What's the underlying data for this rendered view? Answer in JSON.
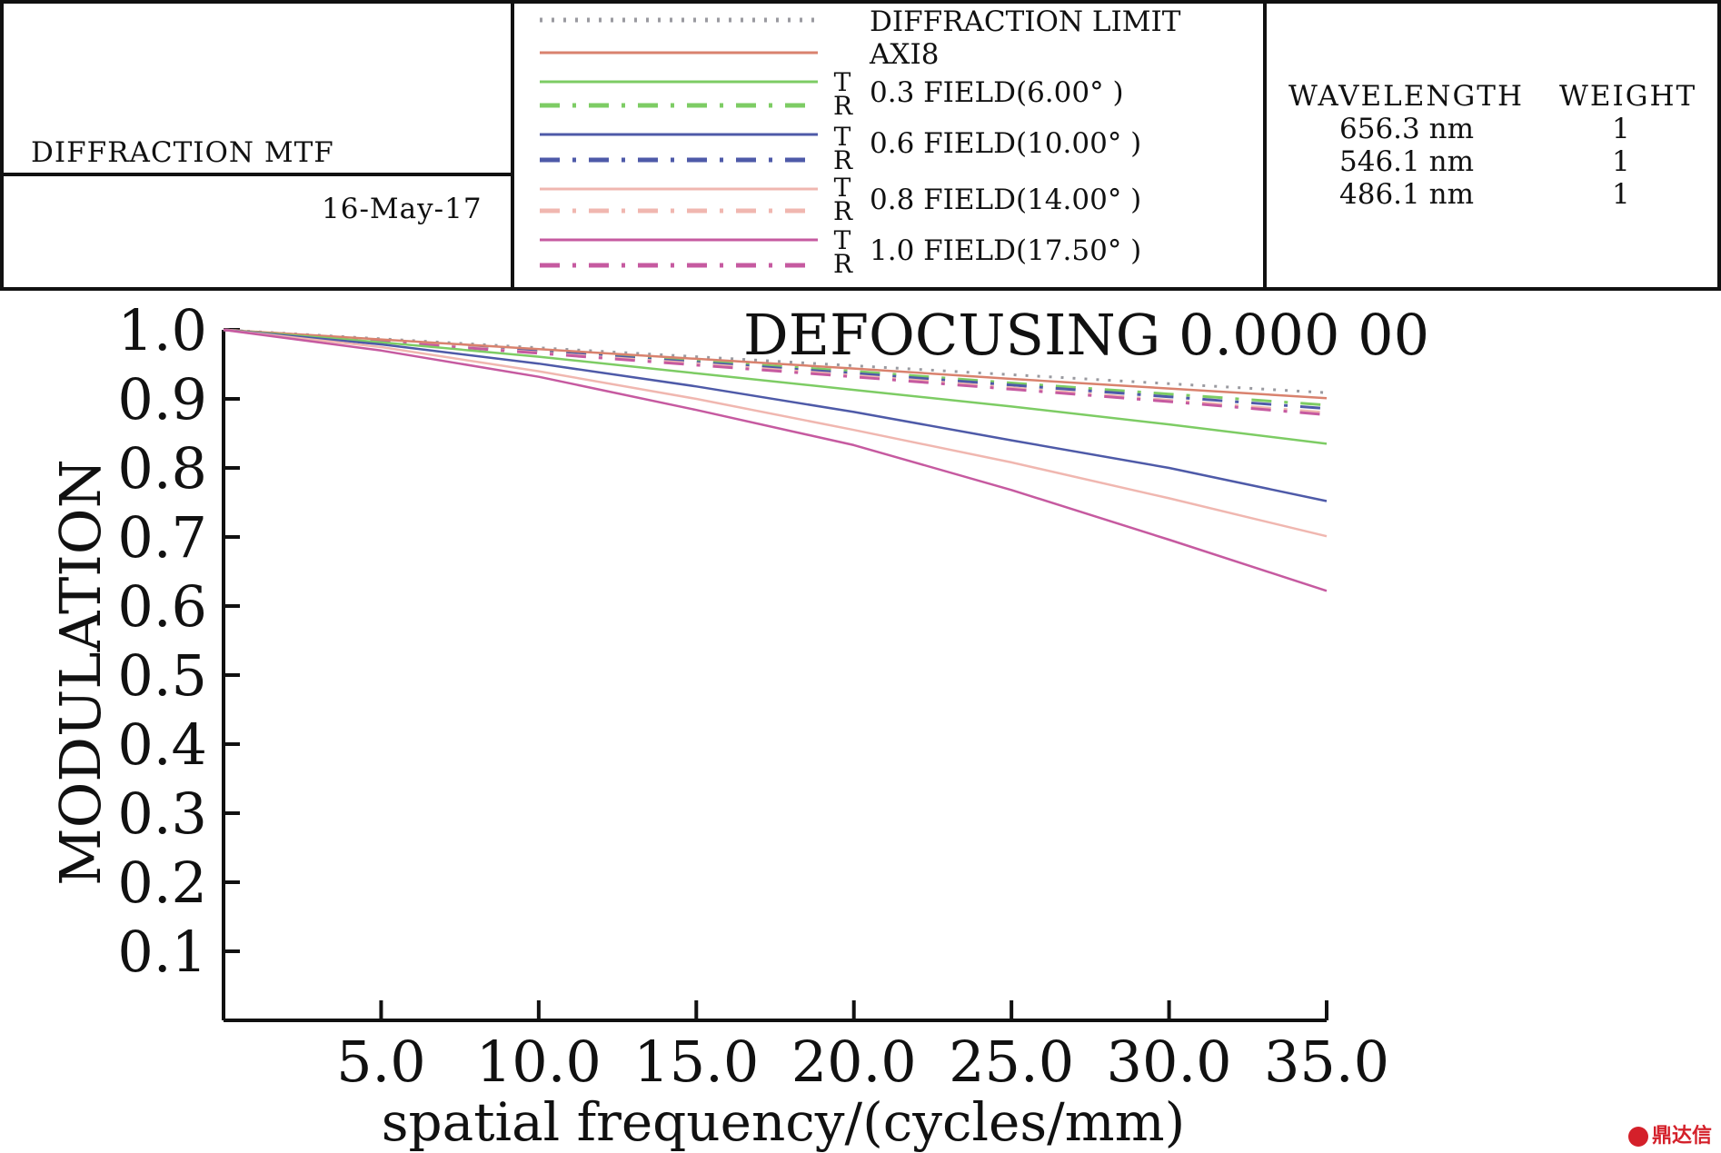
{
  "header": {
    "plot_type": "DIFFRACTION MTF",
    "date": "16-May-17",
    "legend": [
      {
        "label": "DIFFRACTION LIMIT",
        "color": "#9a9aa0"
      },
      {
        "label": "AXI8",
        "color": "#d9826e"
      },
      {
        "label": "0.3 FIELD(6.00°  )",
        "color": "#7dcc64",
        "t": "T",
        "r": "R"
      },
      {
        "label": "0.6 FIELD(10.00°  )",
        "color": "#4e5aa8",
        "t": "T",
        "r": "R"
      },
      {
        "label": "0.8 FIELD(14.00°  )",
        "color": "#f0b7b0",
        "t": "T",
        "r": "R"
      },
      {
        "label": "1.0 FIELD(17.50°  )",
        "color": "#c65aa0",
        "t": "T",
        "r": "R"
      }
    ],
    "wavelength_header": "WAVELENGTH",
    "weight_header": "WEIGHT",
    "wavelengths": [
      {
        "wavelength": "656.3 nm",
        "weight": "1"
      },
      {
        "wavelength": "546.1 nm",
        "weight": "1"
      },
      {
        "wavelength": "486.1 nm",
        "weight": "1"
      }
    ]
  },
  "chart_data": {
    "type": "line",
    "title": "DEFOCUSING  0.000 00",
    "xlabel": "spatial frequency/(cycles/mm)",
    "ylabel": "MODULATION",
    "xlim": [
      0,
      35
    ],
    "ylim": [
      0,
      1.0
    ],
    "xticks": [
      "5.0",
      "10.0",
      "15.0",
      "20.0",
      "25.0",
      "30.0",
      "35.0"
    ],
    "yticks": [
      "0.1",
      "0.2",
      "0.3",
      "0.4",
      "0.5",
      "0.6",
      "0.7",
      "0.8",
      "0.9",
      "1.0"
    ],
    "grid": false,
    "x": [
      0,
      5,
      10,
      15,
      20,
      25,
      30,
      35
    ],
    "series": [
      {
        "name": "DIFFRACTION LIMIT",
        "color": "#9a9aa0",
        "dash": "dot",
        "values": [
          1.0,
          0.987,
          0.974,
          0.961,
          0.948,
          0.935,
          0.922,
          0.909
        ]
      },
      {
        "name": "AXI8",
        "color": "#d9826e",
        "dash": "solid",
        "values": [
          1.0,
          0.986,
          0.972,
          0.958,
          0.944,
          0.929,
          0.915,
          0.901
        ]
      },
      {
        "name": "0.3 FIELD(6.00°  ) T",
        "color": "#7dcc64",
        "dash": "solid",
        "values": [
          1.0,
          0.982,
          0.961,
          0.937,
          0.913,
          0.889,
          0.863,
          0.835
        ]
      },
      {
        "name": "0.3 FIELD(6.00°  ) R",
        "color": "#7dcc64",
        "dash": "dashdot",
        "values": [
          1.0,
          0.985,
          0.97,
          0.955,
          0.94,
          0.923,
          0.907,
          0.891
        ]
      },
      {
        "name": "0.6 FIELD(10.00°  ) T",
        "color": "#4e5aa8",
        "dash": "solid",
        "values": [
          1.0,
          0.979,
          0.951,
          0.918,
          0.881,
          0.84,
          0.8,
          0.752
        ]
      },
      {
        "name": "0.6 FIELD(10.00°  ) R",
        "color": "#4e5aa8",
        "dash": "dashdot",
        "values": [
          1.0,
          0.984,
          0.969,
          0.953,
          0.937,
          0.92,
          0.903,
          0.886
        ]
      },
      {
        "name": "0.8 FIELD(14.00°  ) T",
        "color": "#f0b7b0",
        "dash": "solid",
        "values": [
          1.0,
          0.975,
          0.94,
          0.9,
          0.855,
          0.808,
          0.756,
          0.701
        ]
      },
      {
        "name": "0.8 FIELD(14.00°  ) R",
        "color": "#f0b7b0",
        "dash": "dashdot",
        "values": [
          1.0,
          0.984,
          0.967,
          0.951,
          0.934,
          0.916,
          0.898,
          0.88
        ]
      },
      {
        "name": "1.0 FIELD(17.50°  ) T",
        "color": "#c65aa0",
        "dash": "solid",
        "values": [
          1.0,
          0.97,
          0.932,
          0.884,
          0.833,
          0.768,
          0.696,
          0.622
        ]
      },
      {
        "name": "1.0 FIELD(17.50°  ) R",
        "color": "#c65aa0",
        "dash": "dashdot",
        "values": [
          1.0,
          0.983,
          0.966,
          0.949,
          0.932,
          0.914,
          0.896,
          0.877
        ]
      }
    ]
  },
  "watermark": "鼎达信"
}
